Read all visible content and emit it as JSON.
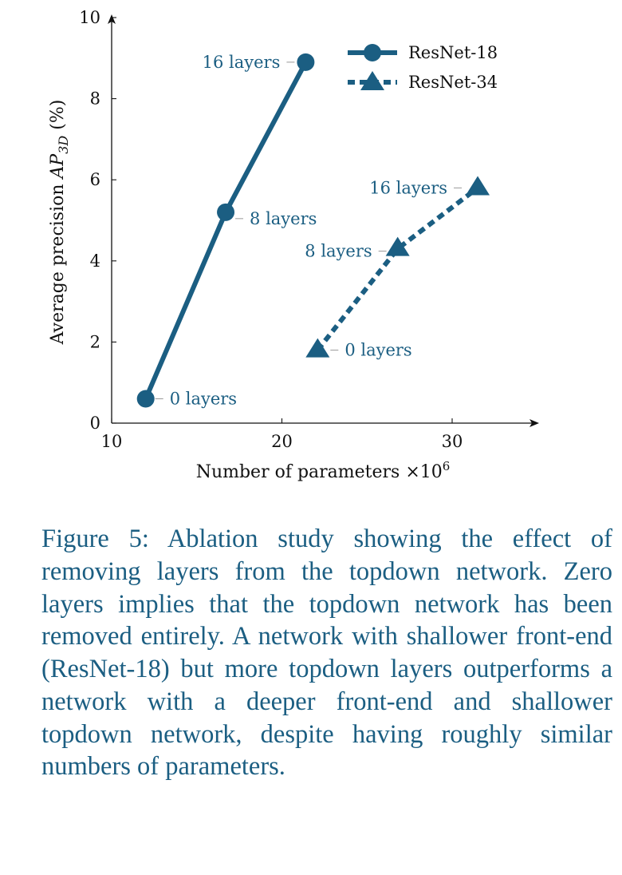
{
  "chart_data": {
    "type": "line",
    "xlabel": "Number of parameters ×10⁶",
    "ylabel": "Average precision AP3D (%)",
    "xlim": [
      10,
      33
    ],
    "ylim": [
      0,
      10
    ],
    "x_ticks": [
      10,
      20,
      30
    ],
    "y_ticks": [
      0,
      2,
      4,
      6,
      8,
      10
    ],
    "grid": false,
    "legend_position": "top-right",
    "series": [
      {
        "name": "ResNet-18",
        "style": "solid",
        "marker": "circle",
        "color": "#1b5e82",
        "points": [
          {
            "x": 12.0,
            "y": 0.6,
            "label": "0 layers"
          },
          {
            "x": 16.7,
            "y": 5.2,
            "label": "8 layers"
          },
          {
            "x": 21.4,
            "y": 8.9,
            "label": "16 layers"
          }
        ]
      },
      {
        "name": "ResNet-34",
        "style": "dashed",
        "marker": "triangle",
        "color": "#1b5e82",
        "points": [
          {
            "x": 22.1,
            "y": 1.8,
            "label": "0 layers"
          },
          {
            "x": 26.8,
            "y": 4.3,
            "label": "8 layers"
          },
          {
            "x": 31.5,
            "y": 5.8,
            "label": "16 layers"
          }
        ]
      }
    ]
  },
  "caption": "Figure 5: Ablation study showing the effect of removing layers from the topdown network. Zero layers implies that the topdown network has been removed entirely. A network with shallower front-end (ResNet-18) but more topdown layers outperforms a network with a deeper front-end and shallower topdown network, despite having roughly similar numbers of parameters."
}
